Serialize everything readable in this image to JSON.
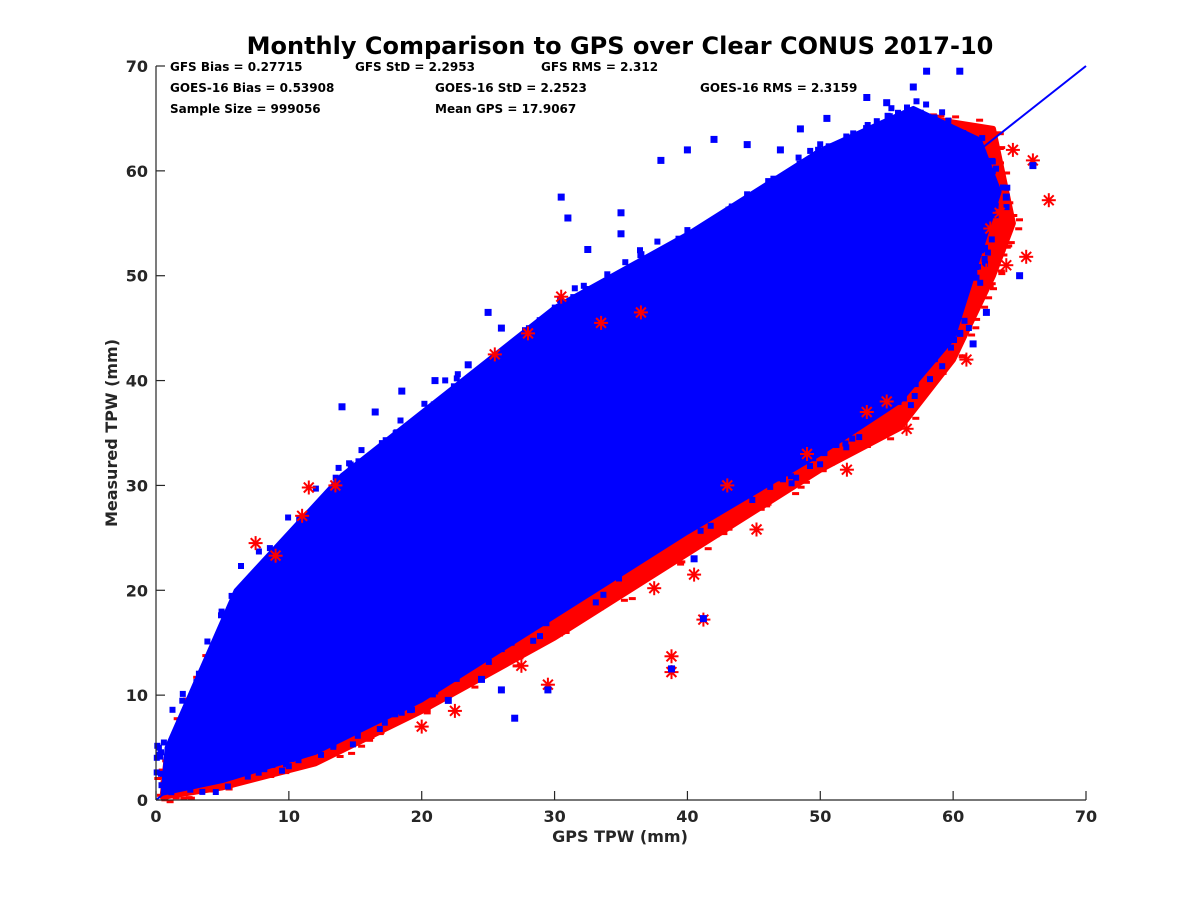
{
  "chart_data": {
    "type": "scatter",
    "title": "Monthly Comparison to GPS over Clear CONUS 2017-10",
    "xlabel": "GPS TPW (mm)",
    "ylabel": "Measured TPW (mm)",
    "xlim": [
      0,
      70
    ],
    "ylim": [
      0,
      70
    ],
    "xticks": [
      0,
      10,
      20,
      30,
      40,
      50,
      60,
      70
    ],
    "yticks": [
      0,
      10,
      20,
      30,
      40,
      50,
      60,
      70
    ],
    "grid": false,
    "legend": "none",
    "stats": {
      "gfs_bias": "GFS Bias = 0.27715",
      "gfs_std": "GFS StD = 2.2953",
      "gfs_rms": "GFS RMS = 2.312",
      "goes_bias": "GOES-16 Bias = 0.53908",
      "goes_std": "GOES-16 StD = 2.2523",
      "goes_rms": "GOES-16 RMS = 2.3159",
      "sample_size": "Sample Size = 999056",
      "mean_gps": "Mean GPS = 17.9067"
    },
    "series": [
      {
        "marker": "asterisk",
        "color": "#ff0000",
        "outliers": [
          [
            67.2,
            57.2
          ],
          [
            65.5,
            51.8
          ],
          [
            64.0,
            51.0
          ],
          [
            62.5,
            50.5
          ],
          [
            61.0,
            42.0
          ],
          [
            56.5,
            35.4
          ],
          [
            53.5,
            37.0
          ],
          [
            49.0,
            33.0
          ],
          [
            45.2,
            25.8
          ],
          [
            43.0,
            30.0
          ],
          [
            41.2,
            17.2
          ],
          [
            38.8,
            13.7
          ],
          [
            38.8,
            12.2
          ],
          [
            37.5,
            20.2
          ],
          [
            40.5,
            21.5
          ],
          [
            29.5,
            11.0
          ],
          [
            27.5,
            12.8
          ],
          [
            22.5,
            8.5
          ],
          [
            20.0,
            7.0
          ],
          [
            30.5,
            48.0
          ],
          [
            25.5,
            42.5
          ],
          [
            28.0,
            44.5
          ],
          [
            11.5,
            29.8
          ],
          [
            11.0,
            27.1
          ],
          [
            13.5,
            30.0
          ],
          [
            7.5,
            24.5
          ],
          [
            9.0,
            23.3
          ],
          [
            66.0,
            61.0
          ],
          [
            64.5,
            62.0
          ],
          [
            63.5,
            56.0
          ],
          [
            62.8,
            54.5
          ],
          [
            36.5,
            46.5
          ],
          [
            33.5,
            45.5
          ],
          [
            52.0,
            31.5
          ],
          [
            55.0,
            38.0
          ]
        ]
      },
      {
        "marker": "square",
        "color": "#0000ff",
        "outliers": [
          [
            58.0,
            69.5
          ],
          [
            60.5,
            69.5
          ],
          [
            57.0,
            68.0
          ],
          [
            53.5,
            67.0
          ],
          [
            48.5,
            64.0
          ],
          [
            44.5,
            62.5
          ],
          [
            40.0,
            62.0
          ],
          [
            38.0,
            61.0
          ],
          [
            30.5,
            57.5
          ],
          [
            31.0,
            55.5
          ],
          [
            32.5,
            52.5
          ],
          [
            35.0,
            54.0
          ],
          [
            36.5,
            52.0
          ],
          [
            25.0,
            46.5
          ],
          [
            26.0,
            45.0
          ],
          [
            16.5,
            37.0
          ],
          [
            14.0,
            37.5
          ],
          [
            66.0,
            60.5
          ],
          [
            64.0,
            57.5
          ],
          [
            65.0,
            50.0
          ],
          [
            62.5,
            46.5
          ],
          [
            60.0,
            49.0
          ],
          [
            60.5,
            44.5
          ],
          [
            61.5,
            43.5
          ],
          [
            41.2,
            17.3
          ],
          [
            38.8,
            12.5
          ],
          [
            40.5,
            23.0
          ],
          [
            29.5,
            10.5
          ],
          [
            26.0,
            10.5
          ],
          [
            24.5,
            11.5
          ],
          [
            22.0,
            9.5
          ],
          [
            27.0,
            7.8
          ],
          [
            35.0,
            56.0
          ],
          [
            42.0,
            63.0
          ],
          [
            47.0,
            62.0
          ],
          [
            50.5,
            65.0
          ],
          [
            55.0,
            66.5
          ],
          [
            21.0,
            40.0
          ],
          [
            18.5,
            39.0
          ],
          [
            23.5,
            41.5
          ]
        ]
      }
    ],
    "reference_line": {
      "color": "#0000ff",
      "from": [
        0,
        0
      ],
      "to": [
        70,
        70
      ]
    }
  }
}
